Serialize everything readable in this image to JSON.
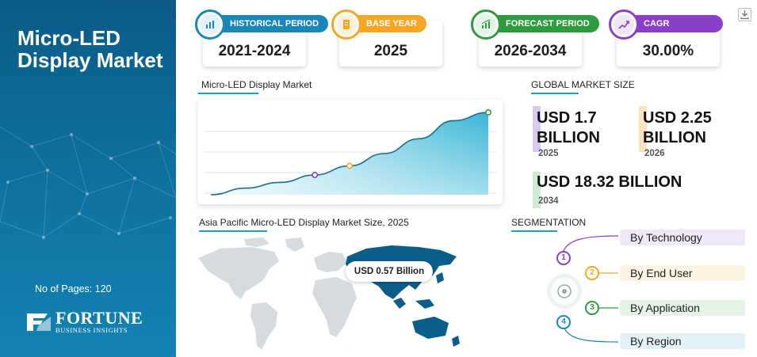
{
  "sidebar": {
    "title": "Micro-LED Display Market",
    "pages": "No of Pages: 120",
    "logo_brand": "FORTUNE",
    "logo_sub": "BUSINESS INSIGHTS"
  },
  "cards": [
    {
      "label": "HISTORICAL PERIOD",
      "value": "2021-2024",
      "color": "#1b87b8",
      "icon": "bar-chart-icon"
    },
    {
      "label": "BASE YEAR",
      "value": "2025",
      "color": "#f5a623",
      "icon": "document-icon"
    },
    {
      "label": "FORECAST PERIOD",
      "value": "2026-2034",
      "color": "#2e9b3e",
      "icon": "forecast-chart-icon"
    },
    {
      "label": "CAGR",
      "value": "30.00%",
      "color": "#8a3fc8",
      "icon": "growth-chart-icon"
    }
  ],
  "chart": {
    "title": "Micro-LED Display Market",
    "chart_data": {
      "type": "area",
      "series": [
        {
          "values": [
            0.0,
            0.08,
            0.15,
            0.24,
            0.35,
            0.5,
            0.68,
            0.9,
            1.0
          ]
        }
      ],
      "highlight_points": [
        {
          "index": 3,
          "color": "#8a3fc8"
        },
        {
          "index": 4,
          "color": "#f5a623"
        },
        {
          "index": 8,
          "color": "#2e9b3e"
        }
      ]
    }
  },
  "global_market": {
    "title": "GLOBAL MARKET SIZE",
    "items": [
      {
        "value": "USD 1.7 BILLION",
        "line1": "USD 1.7",
        "line2": "BILLION",
        "year": "2025",
        "color": "#d9c8f0"
      },
      {
        "value": "USD 2.25 BILLION",
        "line1": "USD 2.25",
        "line2": "BILLION",
        "year": "2026",
        "color": "#fbe3c2"
      },
      {
        "value": "USD 18.32 BILLION",
        "year": "2034",
        "color": "#cdebd2"
      }
    ]
  },
  "map": {
    "title": "Asia Pacific Micro-LED Display Market Size, 2025",
    "label": "USD 0.57 Billion"
  },
  "segmentation": {
    "title": "SEGMENTATION",
    "items": [
      {
        "num": "1",
        "label": "By Technology",
        "color": "#8a3fc8",
        "bg": "#efe8f8"
      },
      {
        "num": "2",
        "label": "By End User",
        "color": "#f5a623",
        "bg": "#fdf3e3"
      },
      {
        "num": "3",
        "label": "By Application",
        "color": "#2e9b3e",
        "bg": "#e6f4e8"
      },
      {
        "num": "4",
        "label": "By Region",
        "color": "#1b87b8",
        "bg": "#e3f2f8"
      }
    ]
  }
}
